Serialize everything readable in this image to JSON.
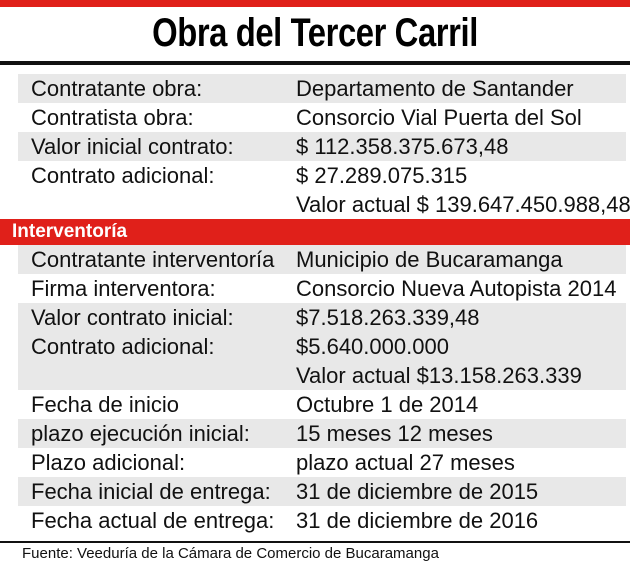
{
  "title": "Obra del Tercer Carril",
  "contract_rows": [
    {
      "label": "Contratante obra:",
      "value": "Departamento de Santander"
    },
    {
      "label": "Contratista obra:",
      "value": "Consorcio Vial Puerta del Sol"
    },
    {
      "label": "Valor inicial contrato:",
      "value": "$ 112.358.375.673,48"
    },
    {
      "label": "Contrato adicional:",
      "value": " $ 27.289.075.315"
    },
    {
      "label": "",
      "value": "Valor actual $ 139.647.450.988,48"
    }
  ],
  "section_label": "Interventoría",
  "interventoria_rows": [
    {
      "label": "Contratante  interventoría",
      "value": "Municipio de Bucaramanga"
    },
    {
      "label": "Firma interventora:",
      "value": "Consorcio Nueva Autopista 2014"
    },
    {
      "label": "Valor contrato inicial:",
      "value": "$7.518.263.339,48"
    },
    {
      "label": "Contrato adicional:",
      "value": "$5.640.000.000"
    },
    {
      "label": "",
      "value": "Valor actual  $13.158.263.339"
    },
    {
      "label": "Fecha de inicio",
      "value": "Octubre 1 de 2014"
    },
    {
      "label": "plazo ejecución inicial:",
      "value": "15 meses 12 meses"
    },
    {
      "label": "Plazo adicional:",
      "value": "plazo actual 27 meses"
    },
    {
      "label": "Fecha inicial de entrega:",
      "value": "31 de diciembre de 2015"
    },
    {
      "label": "Fecha actual de entrega:",
      "value": "31 de diciembre de 2016"
    }
  ],
  "source": "Fuente: Veeduría de la Cámara de Comercio de Bucaramanga",
  "colors": {
    "accent": "#e0201a",
    "shade": "#e8e8e8",
    "text": "#111111"
  }
}
